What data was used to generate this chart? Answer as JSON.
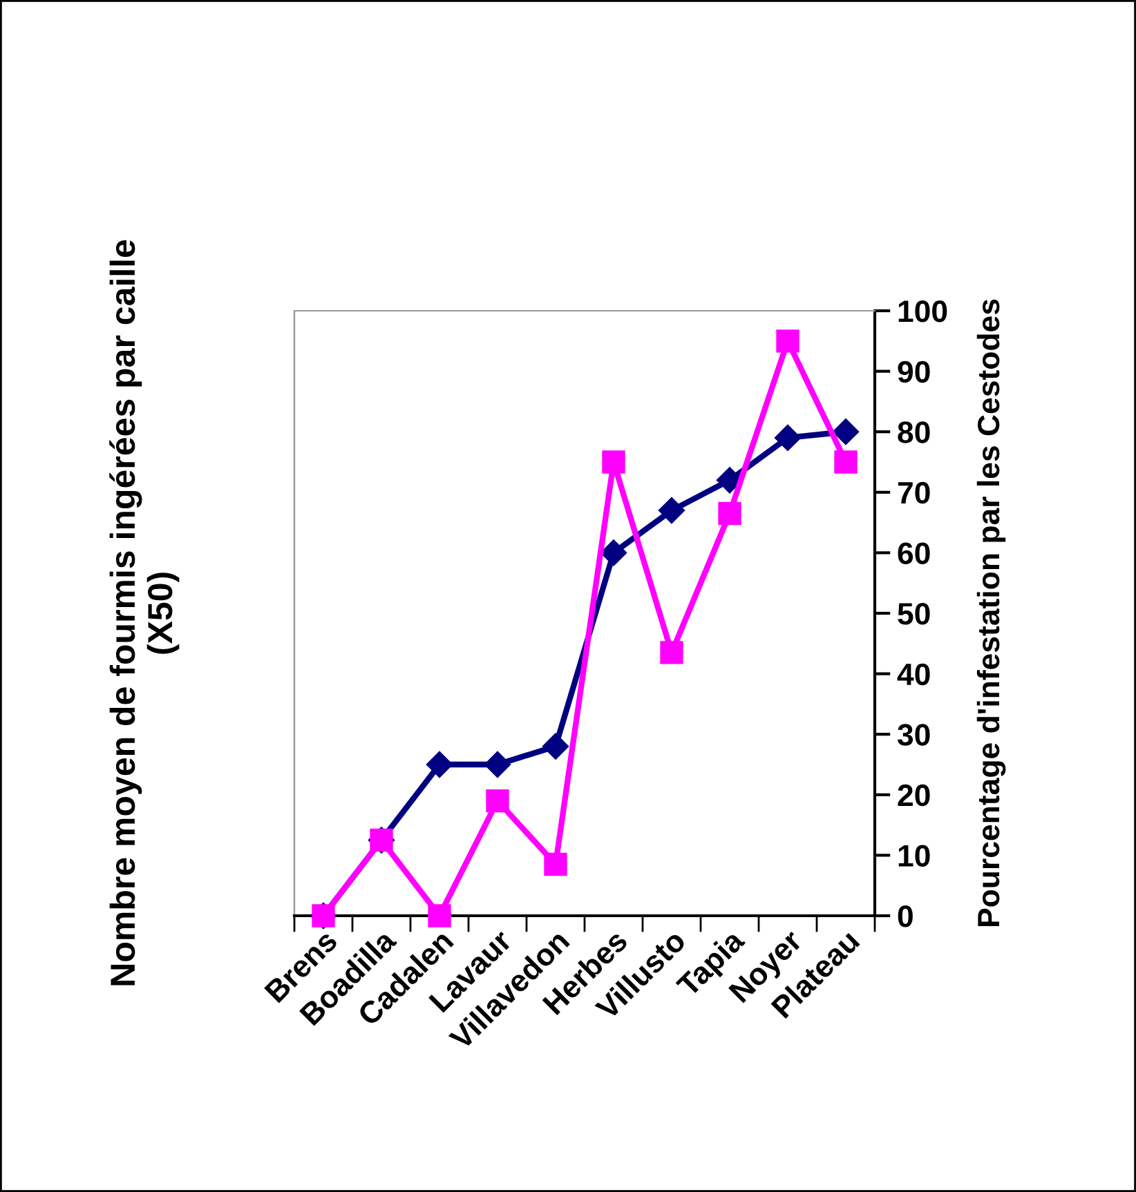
{
  "chart_data": {
    "type": "line",
    "ylabel": "Nombre moyen de fourmis ingérées par caille\n(X50)",
    "y2label": "Pourcentage d'infestation par les Cestodes",
    "categories": [
      "Brens",
      "Boadilla",
      "Cadalen",
      "Lavaur",
      "Villavedon",
      "Herbes",
      "Villusto",
      "Tapia",
      "Noyer",
      "Plateau"
    ],
    "series": [
      {
        "color": "#000080",
        "marker": "diamond",
        "axis": "y2",
        "values": [
          0,
          12.5,
          25,
          25,
          28,
          60,
          67,
          72,
          79,
          80
        ]
      },
      {
        "color": "#ff00ff",
        "marker": "square",
        "axis": "y2",
        "values": [
          0,
          12.5,
          0,
          19,
          8.5,
          75,
          43.5,
          66.5,
          95,
          75
        ]
      }
    ],
    "y2lim": [
      0,
      100
    ],
    "y2ticks": [
      0,
      10,
      20,
      30,
      40,
      50,
      60,
      70,
      80,
      90,
      100
    ],
    "grid": false
  }
}
